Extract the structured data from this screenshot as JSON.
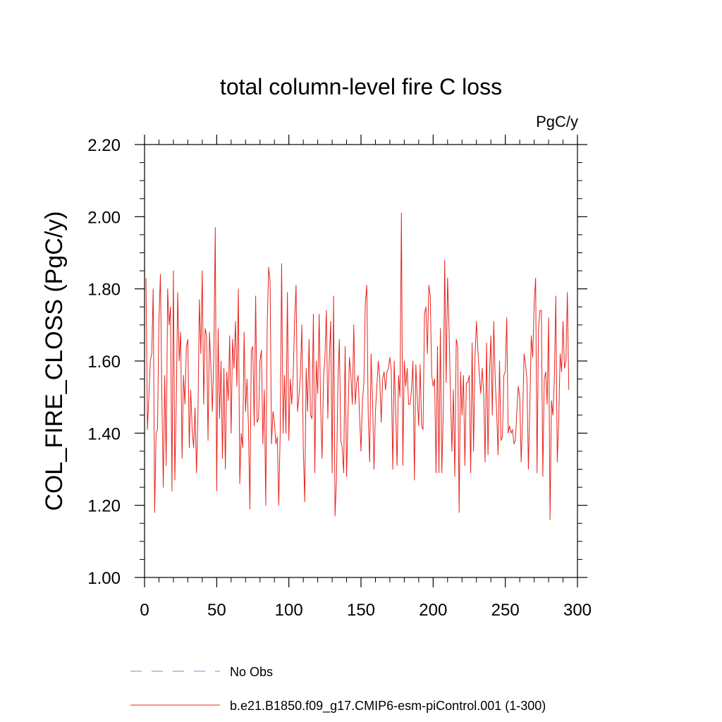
{
  "chart_data": {
    "type": "line",
    "title": "total column-level fire C loss",
    "units_label": "PgC/y",
    "xlabel": "",
    "ylabel": "COL_FIRE_CLOSS  (PgC/y)",
    "xlim": [
      0,
      300
    ],
    "ylim": [
      1.0,
      2.2
    ],
    "x_ticks": [
      0,
      50,
      100,
      150,
      200,
      250,
      300
    ],
    "x_tick_labels": [
      "0",
      "50",
      "100",
      "150",
      "200",
      "250",
      "300"
    ],
    "y_ticks": [
      1.0,
      1.2,
      1.4,
      1.6,
      1.8,
      2.0,
      2.2
    ],
    "y_tick_labels": [
      "1.00",
      "1.20",
      "1.40",
      "1.60",
      "1.80",
      "2.00",
      "2.20"
    ],
    "grid": false,
    "legend_position": "bottom",
    "series": [
      {
        "name": "No Obs",
        "color": "#8a83c8",
        "style": "dashed",
        "values": []
      },
      {
        "name": "b.e21.B1850.f09_g17.CMIP6-esm-piControl.001 (1-300)",
        "color": "#e8231c",
        "style": "solid",
        "x_start": 1,
        "values": [
          1.83,
          1.41,
          1.5,
          1.6,
          1.62,
          1.8,
          1.18,
          1.4,
          1.41,
          1.72,
          1.84,
          1.5,
          1.25,
          1.56,
          1.31,
          1.8,
          1.7,
          1.75,
          1.24,
          1.85,
          1.27,
          1.49,
          1.79,
          1.6,
          1.68,
          1.33,
          1.56,
          1.48,
          1.64,
          1.66,
          1.36,
          1.52,
          1.41,
          1.36,
          1.47,
          1.29,
          1.45,
          1.77,
          1.62,
          1.85,
          1.48,
          1.69,
          1.67,
          1.38,
          1.68,
          1.58,
          1.46,
          1.61,
          1.97,
          1.24,
          1.69,
          1.44,
          1.6,
          1.33,
          1.58,
          1.3,
          1.57,
          1.49,
          1.67,
          1.4,
          1.66,
          1.58,
          1.71,
          1.53,
          1.8,
          1.26,
          1.4,
          1.36,
          1.68,
          1.46,
          1.55,
          1.42,
          1.19,
          1.63,
          1.64,
          1.42,
          1.78,
          1.43,
          1.44,
          1.6,
          1.63,
          1.37,
          1.52,
          1.2,
          1.7,
          1.86,
          1.82,
          1.37,
          1.46,
          1.43,
          1.37,
          1.39,
          1.2,
          1.4,
          1.87,
          1.4,
          1.56,
          1.4,
          1.79,
          1.38,
          1.55,
          1.48,
          1.56,
          1.71,
          1.81,
          1.46,
          1.5,
          1.56,
          1.7,
          1.36,
          1.21,
          1.58,
          1.46,
          1.66,
          1.45,
          1.44,
          1.73,
          1.29,
          1.6,
          1.51,
          1.73,
          1.48,
          1.33,
          1.55,
          1.61,
          1.74,
          1.44,
          1.6,
          1.71,
          1.29,
          1.78,
          1.17,
          1.27,
          1.54,
          1.66,
          1.38,
          1.36,
          1.29,
          1.64,
          1.28,
          1.45,
          1.61,
          1.56,
          1.48,
          1.7,
          1.48,
          1.54,
          1.56,
          1.45,
          1.35,
          1.49,
          1.54,
          1.76,
          1.81,
          1.45,
          1.32,
          1.62,
          1.49,
          1.3,
          1.46,
          1.53,
          1.6,
          1.55,
          1.43,
          1.55,
          1.57,
          1.52,
          1.57,
          1.58,
          1.61,
          1.57,
          1.3,
          1.6,
          1.47,
          1.31,
          1.56,
          1.5,
          2.01,
          1.31,
          1.6,
          1.53,
          1.58,
          1.48,
          1.48,
          1.52,
          1.6,
          1.27,
          1.59,
          1.5,
          1.42,
          1.59,
          1.42,
          1.41,
          1.73,
          1.75,
          1.62,
          1.81,
          1.78,
          1.56,
          1.53,
          1.55,
          1.29,
          1.64,
          1.29,
          1.69,
          1.29,
          1.46,
          1.88,
          1.54,
          1.83,
          1.69,
          1.51,
          1.35,
          1.52,
          1.28,
          1.66,
          1.64,
          1.18,
          1.57,
          1.45,
          1.56,
          1.31,
          1.54,
          1.54,
          1.56,
          1.29,
          1.65,
          1.35,
          1.61,
          1.71,
          1.63,
          1.56,
          1.51,
          1.58,
          1.51,
          1.32,
          1.65,
          1.34,
          1.56,
          1.67,
          1.45,
          1.71,
          1.55,
          1.46,
          1.34,
          1.6,
          1.38,
          1.39,
          1.56,
          1.57,
          1.72,
          1.4,
          1.42,
          1.4,
          1.41,
          1.37,
          1.38,
          1.46,
          1.53,
          1.5,
          1.32,
          1.44,
          1.62,
          1.59,
          1.55,
          1.3,
          1.47,
          1.67,
          1.61,
          1.76,
          1.83,
          1.29,
          1.69,
          1.74,
          1.74,
          1.28,
          1.55,
          1.57,
          1.48,
          1.72,
          1.16,
          1.49,
          1.45,
          1.55,
          1.78,
          1.32,
          1.43,
          1.62,
          1.57,
          1.71,
          1.58,
          1.6,
          1.79,
          1.52
        ]
      }
    ]
  }
}
